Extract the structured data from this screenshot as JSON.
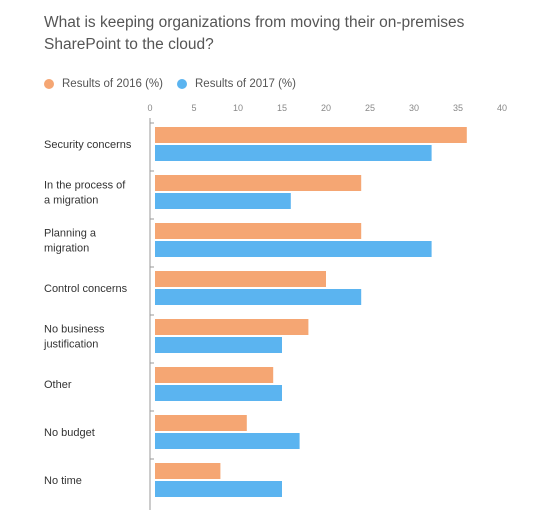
{
  "title": "What is keeping organizations from moving their on-premises SharePoint to the cloud?",
  "colors": {
    "s2016": "#F5A673",
    "s2017": "#5BB4F0",
    "axis": "#999999",
    "grid": "#e6e6e6",
    "tick": "#888888"
  },
  "chart_data": {
    "type": "bar",
    "orientation": "horizontal",
    "title": "What is keeping organizations from moving their on-premises SharePoint to the cloud?",
    "xlim": [
      0,
      40
    ],
    "ticks": [
      0,
      5,
      10,
      15,
      20,
      25,
      30,
      35,
      40
    ],
    "tick_labels": [
      "0",
      "5",
      "10",
      "15",
      "20",
      "25",
      "30",
      "35",
      "40"
    ],
    "categories": [
      [
        "Security concerns"
      ],
      [
        "In the process of",
        "a migration"
      ],
      [
        "Planning a",
        "migration"
      ],
      [
        "Control concerns"
      ],
      [
        "No business",
        "justification"
      ],
      [
        "Other"
      ],
      [
        "No budget"
      ],
      [
        "No time"
      ]
    ],
    "series": [
      {
        "name": "Results of 2016 (%)",
        "color": "#F5A673",
        "values": [
          36,
          24,
          24,
          20,
          18,
          14,
          11,
          8
        ]
      },
      {
        "name": "Results of 2017 (%)",
        "color": "#5BB4F0",
        "values": [
          32,
          16,
          32,
          24,
          15,
          15,
          17,
          15
        ]
      }
    ],
    "legend_position": "top-left",
    "grid": false
  }
}
